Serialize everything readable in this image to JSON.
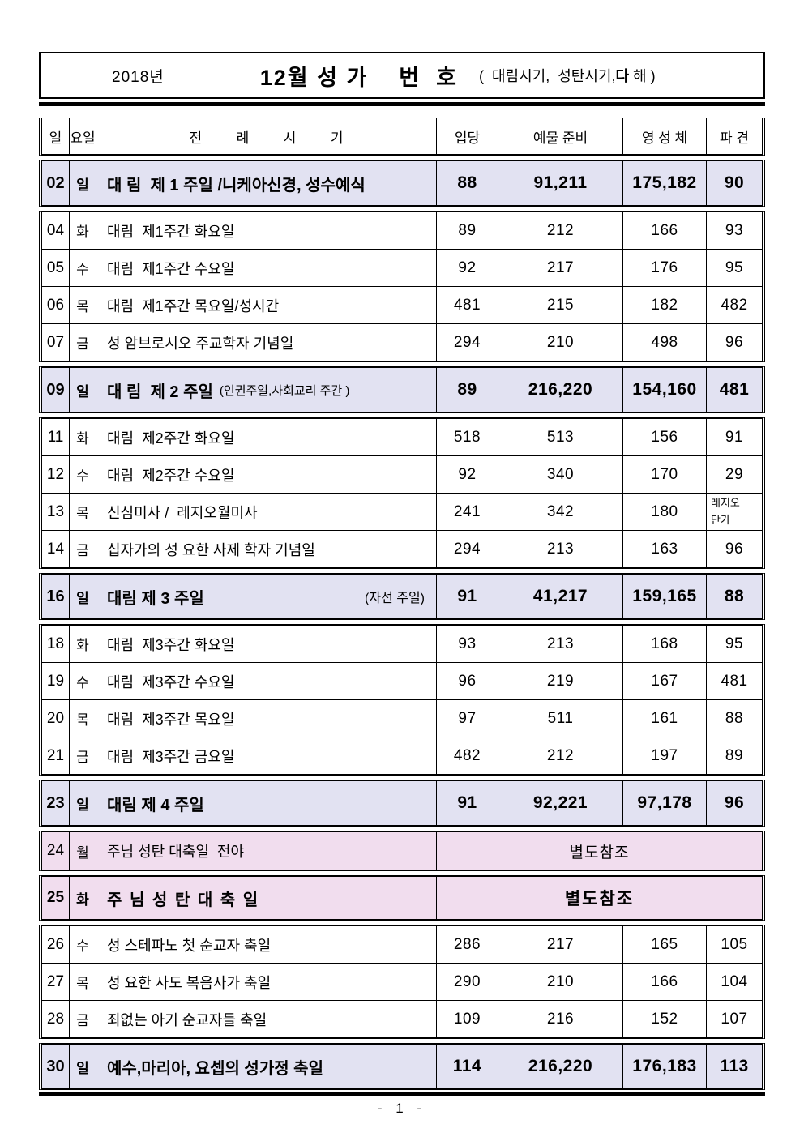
{
  "title": {
    "year": "2018년",
    "main": "12월 성 가    번  호",
    "note_prefix": "(  대림시기,  성탄시기,",
    "note_bold": "다",
    "note_suffix": " 해 )"
  },
  "columns": {
    "day": "일",
    "weekday": "요일",
    "liturgy": "전         례         시         기",
    "entrance": "입당",
    "offertory": "예물 준비",
    "communion": "영 성 체",
    "dismissal": "파 견"
  },
  "colors": {
    "sunday_bg": "#e2e2f2",
    "feast_bg": "#f1ddee"
  },
  "footer": {
    "page": "- 1 -"
  },
  "groups": [
    {
      "rows": [
        {
          "day": "02",
          "weekday": "일",
          "title": "대 림  제 1 주일 /니케아신경, 성수예식",
          "entrance": "88",
          "offertory": "91,211",
          "communion": "175,182",
          "dismissal": "90",
          "style": "sunday"
        }
      ]
    },
    {
      "rows": [
        {
          "day": "04",
          "weekday": "화",
          "title": "대림  제1주간 화요일",
          "entrance": "89",
          "offertory": "212",
          "communion": "166",
          "dismissal": "93"
        },
        {
          "day": "05",
          "weekday": "수",
          "title": "대림  제1주간 수요일",
          "entrance": "92",
          "offertory": "217",
          "communion": "176",
          "dismissal": "95"
        },
        {
          "day": "06",
          "weekday": "목",
          "title": "대림  제1주간 목요일/성시간",
          "entrance": "481",
          "offertory": "215",
          "communion": "182",
          "dismissal": "482"
        },
        {
          "day": "07",
          "weekday": "금",
          "title": "성 암브로시오 주교학자 기념일",
          "entrance": "294",
          "offertory": "210",
          "communion": "498",
          "dismissal": "96"
        }
      ]
    },
    {
      "rows": [
        {
          "day": "09",
          "weekday": "일",
          "title": "대 림  제 2 주일",
          "note_inline": "(인권주일,사회교리 주간 )",
          "entrance": "89",
          "offertory": "216,220",
          "communion": "154,160",
          "dismissal": "481",
          "style": "sunday"
        }
      ]
    },
    {
      "rows": [
        {
          "day": "11",
          "weekday": "화",
          "title": "대림  제2주간 화요일",
          "entrance": "518",
          "offertory": "513",
          "communion": "156",
          "dismissal": "91"
        },
        {
          "day": "12",
          "weekday": "수",
          "title": "대림  제2주간 수요일",
          "entrance": "92",
          "offertory": "340",
          "communion": "170",
          "dismissal": "29"
        },
        {
          "day": "13",
          "weekday": "목",
          "title": "신심미사 /  레지오월미사",
          "entrance": "241",
          "offertory": "342",
          "communion": "180",
          "dismissal": "레지오\n단가",
          "dismissal_small": true
        },
        {
          "day": "14",
          "weekday": "금",
          "title": "십자가의 성 요한 사제 학자 기념일",
          "entrance": "294",
          "offertory": "213",
          "communion": "163",
          "dismissal": "96"
        }
      ]
    },
    {
      "rows": [
        {
          "day": "16",
          "weekday": "일",
          "title": "대림 제 3 주일",
          "note_right": "(자선 주일)",
          "entrance": "91",
          "offertory": "41,217",
          "communion": "159,165",
          "dismissal": "88",
          "style": "sunday"
        }
      ]
    },
    {
      "rows": [
        {
          "day": "18",
          "weekday": "화",
          "title": "대림  제3주간 화요일",
          "entrance": "93",
          "offertory": "213",
          "communion": "168",
          "dismissal": "95"
        },
        {
          "day": "19",
          "weekday": "수",
          "title": "대림  제3주간 수요일",
          "entrance": "96",
          "offertory": "219",
          "communion": "167",
          "dismissal": "481"
        },
        {
          "day": "20",
          "weekday": "목",
          "title": "대림  제3주간 목요일",
          "entrance": "97",
          "offertory": "511",
          "communion": "161",
          "dismissal": "88"
        },
        {
          "day": "21",
          "weekday": "금",
          "title": "대림  제3주간 금요일",
          "entrance": "482",
          "offertory": "212",
          "communion": "197",
          "dismissal": "89"
        }
      ]
    },
    {
      "rows": [
        {
          "day": "23",
          "weekday": "일",
          "title": "대림 제 4 주일",
          "entrance": "91",
          "offertory": "92,221",
          "communion": "97,178",
          "dismissal": "96",
          "style": "sunday"
        }
      ]
    },
    {
      "rows": [
        {
          "day": "24",
          "weekday": "월",
          "title": "주님 성탄 대축일  전야",
          "merged": "별도참조",
          "style": "feast"
        }
      ]
    },
    {
      "rows": [
        {
          "day": "25",
          "weekday": "화",
          "title": "주 님 성 탄 대 축 일",
          "merged": "별도참조",
          "style": "feast-bold"
        }
      ]
    },
    {
      "rows": [
        {
          "day": "26",
          "weekday": "수",
          "title": "성 스테파노 첫 순교자 축일",
          "entrance": "286",
          "offertory": "217",
          "communion": "165",
          "dismissal": "105"
        },
        {
          "day": "27",
          "weekday": "목",
          "title": "성 요한 사도 복음사가 축일",
          "entrance": "290",
          "offertory": "210",
          "communion": "166",
          "dismissal": "104"
        },
        {
          "day": "28",
          "weekday": "금",
          "title": "죄없는 아기 순교자들 축일",
          "entrance": "109",
          "offertory": "216",
          "communion": "152",
          "dismissal": "107"
        }
      ]
    },
    {
      "rows": [
        {
          "day": "30",
          "weekday": "일",
          "title": "예수,마리아, 요셉의 성가정 축일",
          "entrance": "114",
          "offertory": "216,220",
          "communion": "176,183",
          "dismissal": "113",
          "style": "sunday"
        }
      ]
    }
  ]
}
